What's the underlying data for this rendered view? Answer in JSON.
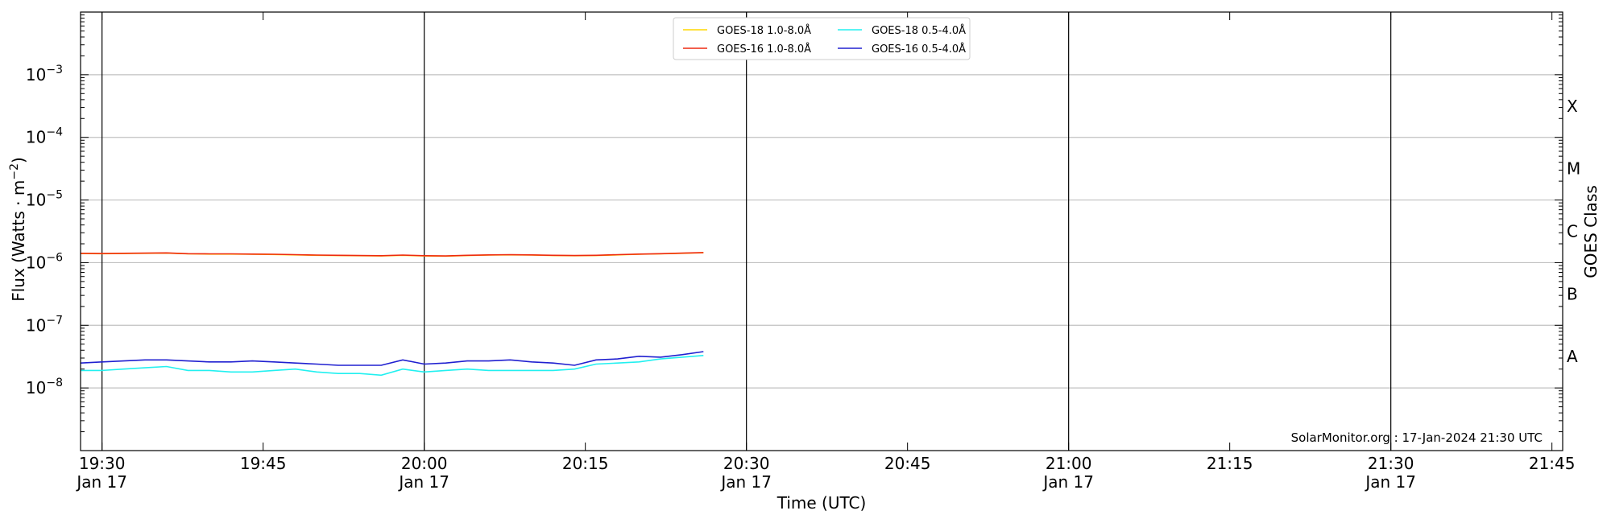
{
  "chart_data": {
    "type": "line",
    "ylabel_main": "Flux (Watts · m",
    "ylabel_sup": "−2",
    "ylabel_close": ")",
    "xlabel": "Time (UTC)",
    "right_label": "GOES Class",
    "watermark": "SolarMonitor.org : 17-Jan-2024 21:30 UTC",
    "yscale": "log",
    "ylim_exp": [
      -9,
      -2
    ],
    "y_tick_exps": [
      -8,
      -7,
      -6,
      -5,
      -4,
      -3
    ],
    "xlim": [
      "19:28",
      "21:46"
    ],
    "x_ticks": [
      {
        "t": "19:30",
        "label": "19:30",
        "date": "Jan 17"
      },
      {
        "t": "19:45",
        "label": "19:45",
        "date": ""
      },
      {
        "t": "20:00",
        "label": "20:00",
        "date": "Jan 17"
      },
      {
        "t": "20:15",
        "label": "20:15",
        "date": ""
      },
      {
        "t": "20:30",
        "label": "20:30",
        "date": "Jan 17"
      },
      {
        "t": "20:45",
        "label": "20:45",
        "date": ""
      },
      {
        "t": "21:00",
        "label": "21:00",
        "date": "Jan 17"
      },
      {
        "t": "21:15",
        "label": "21:15",
        "date": ""
      },
      {
        "t": "21:30",
        "label": "21:30",
        "date": "Jan 17"
      },
      {
        "t": "21:45",
        "label": "21:45",
        "date": ""
      }
    ],
    "day_lines": [
      "19:30",
      "20:00",
      "20:30",
      "21:00",
      "21:30"
    ],
    "goes_classes": [
      {
        "label": "X",
        "exp": -3.5
      },
      {
        "label": "M",
        "exp": -4.5
      },
      {
        "label": "C",
        "exp": -5.5
      },
      {
        "label": "B",
        "exp": -6.5
      },
      {
        "label": "A",
        "exp": -7.5
      }
    ],
    "grid": true,
    "legend_position": "top-center",
    "x": [
      "19:28",
      "19:30",
      "19:32",
      "19:34",
      "19:36",
      "19:38",
      "19:40",
      "19:42",
      "19:44",
      "19:46",
      "19:48",
      "19:50",
      "19:52",
      "19:54",
      "19:56",
      "19:58",
      "20:00",
      "20:02",
      "20:04",
      "20:06",
      "20:08",
      "20:10",
      "20:12",
      "20:14",
      "20:16",
      "20:18",
      "20:20",
      "20:22",
      "20:24",
      "20:26"
    ],
    "series": [
      {
        "name": "GOES-18 1.0-8.0Å",
        "color": "#ffd700",
        "values": [
          1.4e-06,
          1.39e-06,
          1.4e-06,
          1.41e-06,
          1.42e-06,
          1.38e-06,
          1.37e-06,
          1.37e-06,
          1.36e-06,
          1.35e-06,
          1.33e-06,
          1.31e-06,
          1.3e-06,
          1.29e-06,
          1.28e-06,
          1.31e-06,
          1.28e-06,
          1.27e-06,
          1.3e-06,
          1.32e-06,
          1.33e-06,
          1.32e-06,
          1.3e-06,
          1.29e-06,
          1.3e-06,
          1.33e-06,
          1.36e-06,
          1.38e-06,
          1.41e-06,
          1.44e-06
        ]
      },
      {
        "name": "GOES-16 1.0-8.0Å",
        "color": "#ee2a10",
        "values": [
          1.41e-06,
          1.4e-06,
          1.41e-06,
          1.42e-06,
          1.43e-06,
          1.39e-06,
          1.38e-06,
          1.38e-06,
          1.37e-06,
          1.36e-06,
          1.34e-06,
          1.32e-06,
          1.31e-06,
          1.3e-06,
          1.29e-06,
          1.32e-06,
          1.29e-06,
          1.28e-06,
          1.31e-06,
          1.33e-06,
          1.34e-06,
          1.33e-06,
          1.31e-06,
          1.3e-06,
          1.31e-06,
          1.34e-06,
          1.37e-06,
          1.39e-06,
          1.42e-06,
          1.45e-06
        ]
      },
      {
        "name": "GOES-18 0.5-4.0Å",
        "color": "#22f0f0",
        "values": [
          1.9e-08,
          1.9e-08,
          2e-08,
          2.1e-08,
          2.2e-08,
          1.9e-08,
          1.9e-08,
          1.8e-08,
          1.8e-08,
          1.9e-08,
          2e-08,
          1.8e-08,
          1.7e-08,
          1.7e-08,
          1.6e-08,
          2e-08,
          1.8e-08,
          1.9e-08,
          2e-08,
          1.9e-08,
          1.9e-08,
          1.9e-08,
          1.9e-08,
          2e-08,
          2.4e-08,
          2.5e-08,
          2.6e-08,
          2.9e-08,
          3.1e-08,
          3.3e-08
        ]
      },
      {
        "name": "GOES-16 0.5-4.0Å",
        "color": "#2020d0",
        "values": [
          2.5e-08,
          2.6e-08,
          2.7e-08,
          2.8e-08,
          2.8e-08,
          2.7e-08,
          2.6e-08,
          2.6e-08,
          2.7e-08,
          2.6e-08,
          2.5e-08,
          2.4e-08,
          2.3e-08,
          2.3e-08,
          2.3e-08,
          2.8e-08,
          2.4e-08,
          2.5e-08,
          2.7e-08,
          2.7e-08,
          2.8e-08,
          2.6e-08,
          2.5e-08,
          2.3e-08,
          2.8e-08,
          2.9e-08,
          3.2e-08,
          3.1e-08,
          3.4e-08,
          3.8e-08
        ]
      }
    ]
  }
}
